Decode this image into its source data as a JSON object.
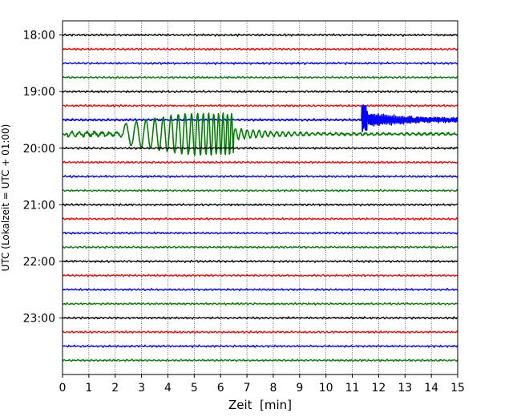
{
  "chart_data": {
    "type": "line",
    "title": "",
    "xlabel": "Zeit  [min]",
    "ylabel": "UTC (Lokalzeit = UTC + 01:00)",
    "xlim": [
      0,
      15
    ],
    "x_ticks": [
      "0",
      "1",
      "2",
      "3",
      "4",
      "5",
      "6",
      "7",
      "8",
      "9",
      "10",
      "11",
      "12",
      "13",
      "14",
      "15"
    ],
    "ylim": [
      "17:45",
      "24:00"
    ],
    "y_ticks": [
      "18:00",
      "19:00",
      "20:00",
      "21:00",
      "22:00",
      "23:00"
    ],
    "grid": "vertical dotted at each minute",
    "trace_interval_minutes": 15,
    "trace_colors": [
      "#000000",
      "#ff0000",
      "#0000ff",
      "#008000"
    ],
    "traces": [
      {
        "start": "18:00",
        "color": "#000000",
        "event": null
      },
      {
        "start": "18:15",
        "color": "#ff0000",
        "event": null
      },
      {
        "start": "18:30",
        "color": "#0000ff",
        "event": null
      },
      {
        "start": "18:45",
        "color": "#008000",
        "event": null
      },
      {
        "start": "19:00",
        "color": "#000000",
        "event": null
      },
      {
        "start": "19:15",
        "color": "#ff0000",
        "event": null
      },
      {
        "start": "19:30",
        "color": "#0000ff",
        "event": {
          "kind": "onset",
          "start_min": 11.35,
          "peak": 0.95
        }
      },
      {
        "start": "19:45",
        "color": "#008000",
        "event": {
          "kind": "surface-wave",
          "start_min": 0.2,
          "peak": 1.45
        }
      },
      {
        "start": "20:00",
        "color": "#000000",
        "event": null
      },
      {
        "start": "20:15",
        "color": "#ff0000",
        "event": null
      },
      {
        "start": "20:30",
        "color": "#0000ff",
        "event": null
      },
      {
        "start": "20:45",
        "color": "#008000",
        "event": null
      },
      {
        "start": "21:00",
        "color": "#000000",
        "event": null
      },
      {
        "start": "21:15",
        "color": "#ff0000",
        "event": null
      },
      {
        "start": "21:30",
        "color": "#0000ff",
        "event": null
      },
      {
        "start": "21:45",
        "color": "#008000",
        "event": null
      },
      {
        "start": "22:00",
        "color": "#000000",
        "event": null
      },
      {
        "start": "22:15",
        "color": "#ff0000",
        "event": null
      },
      {
        "start": "22:30",
        "color": "#0000ff",
        "event": null
      },
      {
        "start": "22:45",
        "color": "#008000",
        "event": null
      },
      {
        "start": "23:00",
        "color": "#000000",
        "event": null
      },
      {
        "start": "23:15",
        "color": "#ff0000",
        "event": null
      },
      {
        "start": "23:30",
        "color": "#0000ff",
        "event": null
      },
      {
        "start": "23:45",
        "color": "#008000",
        "event": null
      }
    ]
  }
}
